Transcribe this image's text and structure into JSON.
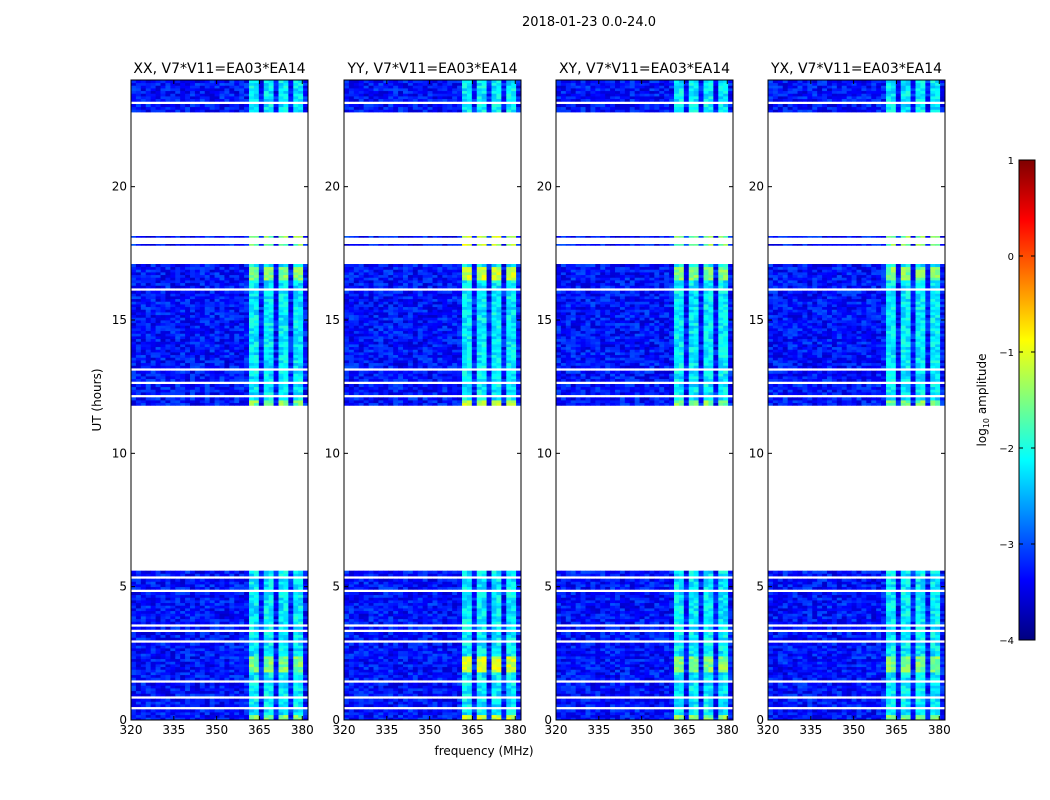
{
  "figure": {
    "suptitle": "2018-01-23 0.0-24.0",
    "xlabel": "frequency (MHz)",
    "ylabel": "UT (hours)"
  },
  "colorbar": {
    "label_prefix": "log",
    "label_sub": "10",
    "label_suffix": " amplitude",
    "ticks": [
      1,
      0,
      -1,
      -2,
      -3,
      -4
    ],
    "tick_labels": [
      "1",
      "0",
      "−1",
      "−2",
      "−3",
      "−4"
    ],
    "vmin": -4,
    "vmax": 1,
    "colormap": "jet",
    "stops": [
      "#00007f",
      "#0000ff",
      "#007fff",
      "#00ffff",
      "#7fff7f",
      "#ffff00",
      "#ff7f00",
      "#ff0000",
      "#7f0000"
    ]
  },
  "chart_data": {
    "type": "heatmap",
    "colormap": "jet",
    "color_scale": "log10 amplitude",
    "xlim": [
      320,
      382
    ],
    "ylim": [
      0,
      24
    ],
    "xticks": [
      320,
      335,
      350,
      365,
      380
    ],
    "xtick_labels": [
      "320",
      "335",
      "350",
      "365",
      "380"
    ],
    "yticks": [
      0,
      5,
      10,
      15,
      20
    ],
    "ytick_labels": [
      "0",
      "5",
      "10",
      "15",
      "20"
    ],
    "panels": [
      {
        "title": "XX, V7*V11=EA03*EA14",
        "polarization": "XX"
      },
      {
        "title": "YY, V7*V11=EA03*EA14",
        "polarization": "YY"
      },
      {
        "title": "XY, V7*V11=EA03*EA14",
        "polarization": "XY"
      },
      {
        "title": "YX, V7*V11=EA03*EA14",
        "polarization": "YX"
      }
    ],
    "data_time_ranges_hours": [
      [
        0.0,
        5.6
      ],
      [
        11.8,
        17.1
      ],
      [
        17.8,
        17.85
      ],
      [
        18.1,
        18.15
      ],
      [
        22.8,
        24.0
      ]
    ],
    "blank_time_gaps_hours": [
      [
        0.4,
        0.45
      ],
      [
        0.75,
        0.8
      ],
      [
        1.4,
        1.45
      ],
      [
        2.9,
        2.95
      ],
      [
        3.3,
        3.35
      ],
      [
        3.5,
        3.55
      ],
      [
        4.25,
        4.3
      ],
      [
        4.75,
        4.8
      ],
      [
        5.0,
        5.05
      ],
      [
        5.25,
        5.3
      ],
      [
        12.1,
        12.15
      ],
      [
        12.55,
        12.65
      ],
      [
        13.0,
        13.1
      ],
      [
        13.3,
        13.35
      ],
      [
        13.7,
        13.75
      ],
      [
        14.0,
        14.05
      ],
      [
        14.3,
        14.35
      ],
      [
        15.4,
        15.45
      ],
      [
        16.05,
        16.1
      ],
      [
        16.4,
        16.45
      ],
      [
        23.1,
        23.15
      ]
    ],
    "bright_frequency_bands_mhz": [
      [
        361,
        365
      ],
      [
        366,
        370
      ],
      [
        371,
        375
      ],
      [
        376,
        380
      ]
    ],
    "background_log10_amplitude": -3.3,
    "band_log10_amplitude": -2.2
  }
}
